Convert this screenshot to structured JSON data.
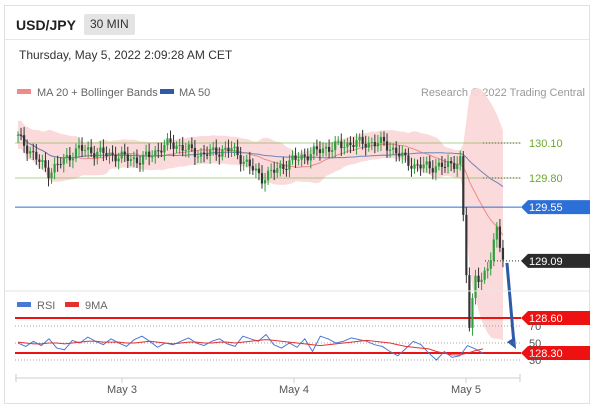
{
  "header": {
    "symbol": "USD/JPY",
    "timeframe": "30 MIN",
    "datetime": "Thursday, May 5, 2022 2:09:28 AM CET"
  },
  "legend": {
    "ma20_label": "MA 20 + Bollinger Bands",
    "ma20_color": "#ef8a8a",
    "ma50_label": "MA 50",
    "ma50_color": "#2f5aa8",
    "credit": "Research © 2022 Trading Central"
  },
  "rsi_legend": {
    "rsi_label": "RSI",
    "rsi_color": "#4a78d6",
    "ma_label": "9MA",
    "ma_color": "#e53030"
  },
  "chart_data": [
    {
      "type": "candlestick",
      "title": "USD/JPY",
      "x_tick_labels": [
        "May 3",
        "May 4",
        "May 5"
      ],
      "ylim": [
        128.0,
        130.5
      ],
      "levels": [
        {
          "value": 130.1,
          "label": "130.10",
          "style": "thin-line-label",
          "color": "#6aaa2b"
        },
        {
          "value": 129.8,
          "label": "129.80",
          "style": "thin-line-label",
          "color": "#6aaa2b"
        },
        {
          "value": 129.55,
          "label": "129.55",
          "style": "badge",
          "color": "#2c6fd6"
        },
        {
          "value": 129.09,
          "label": "129.09",
          "style": "badge-last-price",
          "color": "#2b2b2b"
        },
        {
          "value": 128.6,
          "label": "128.60",
          "style": "badge-thick",
          "color": "#ee1111"
        },
        {
          "value": 128.3,
          "label": "128.30",
          "style": "badge-thick",
          "color": "#ee1111"
        }
      ],
      "close_anchors": [
        [
          0,
          130.15
        ],
        [
          10,
          129.85
        ],
        [
          20,
          130.05
        ],
        [
          30,
          130.0
        ],
        [
          40,
          129.95
        ],
        [
          50,
          130.1
        ],
        [
          60,
          130.0
        ],
        [
          70,
          130.05
        ],
        [
          80,
          129.8
        ],
        [
          90,
          129.95
        ],
        [
          100,
          130.05
        ],
        [
          110,
          130.1
        ],
        [
          120,
          130.1
        ],
        [
          130,
          129.9
        ],
        [
          140,
          129.9
        ],
        [
          145,
          129.95
        ],
        [
          148,
          128.5
        ],
        [
          150,
          129.0
        ],
        [
          152,
          128.9
        ],
        [
          155,
          129.1
        ],
        [
          157,
          129.4
        ],
        [
          159,
          129.1
        ]
      ],
      "forecast_arrow": {
        "from": 129.09,
        "to": 128.3,
        "color": "#2f5aa8"
      }
    },
    {
      "type": "line",
      "title": "RSI",
      "ylim": [
        15,
        80
      ],
      "levels": [
        70,
        50,
        30
      ],
      "level_labels": [
        "70",
        "50",
        "30"
      ],
      "series": [
        {
          "name": "RSI",
          "color": "#4a78d6",
          "values": [
            50,
            46,
            52,
            47,
            55,
            44,
            42,
            53,
            50,
            57,
            52,
            48,
            55,
            50,
            46,
            54,
            58,
            52,
            45,
            50,
            48,
            52,
            56,
            50,
            47,
            52,
            55,
            49,
            46,
            58,
            55,
            52,
            60,
            48,
            44,
            50,
            45,
            55,
            40,
            58,
            55,
            50,
            52,
            56,
            54,
            52,
            48,
            46,
            40,
            35,
            43,
            52,
            48,
            38,
            30,
            40,
            33,
            35,
            47,
            43,
            38
          ]
        },
        {
          "name": "9MA",
          "color": "#e53030",
          "values": [
            51,
            50,
            49,
            49,
            50,
            50,
            49,
            50,
            51,
            52,
            52,
            51,
            51,
            51,
            50,
            50,
            51,
            52,
            51,
            50,
            49,
            50,
            51,
            51,
            50,
            50,
            51,
            51,
            50,
            51,
            52,
            53,
            54,
            53,
            52,
            51,
            50,
            49,
            48,
            47,
            48,
            49,
            50,
            51,
            52,
            53,
            52,
            51,
            50,
            48,
            46,
            45,
            44,
            43,
            40,
            38,
            36,
            36,
            38,
            41,
            43
          ]
        }
      ]
    }
  ]
}
